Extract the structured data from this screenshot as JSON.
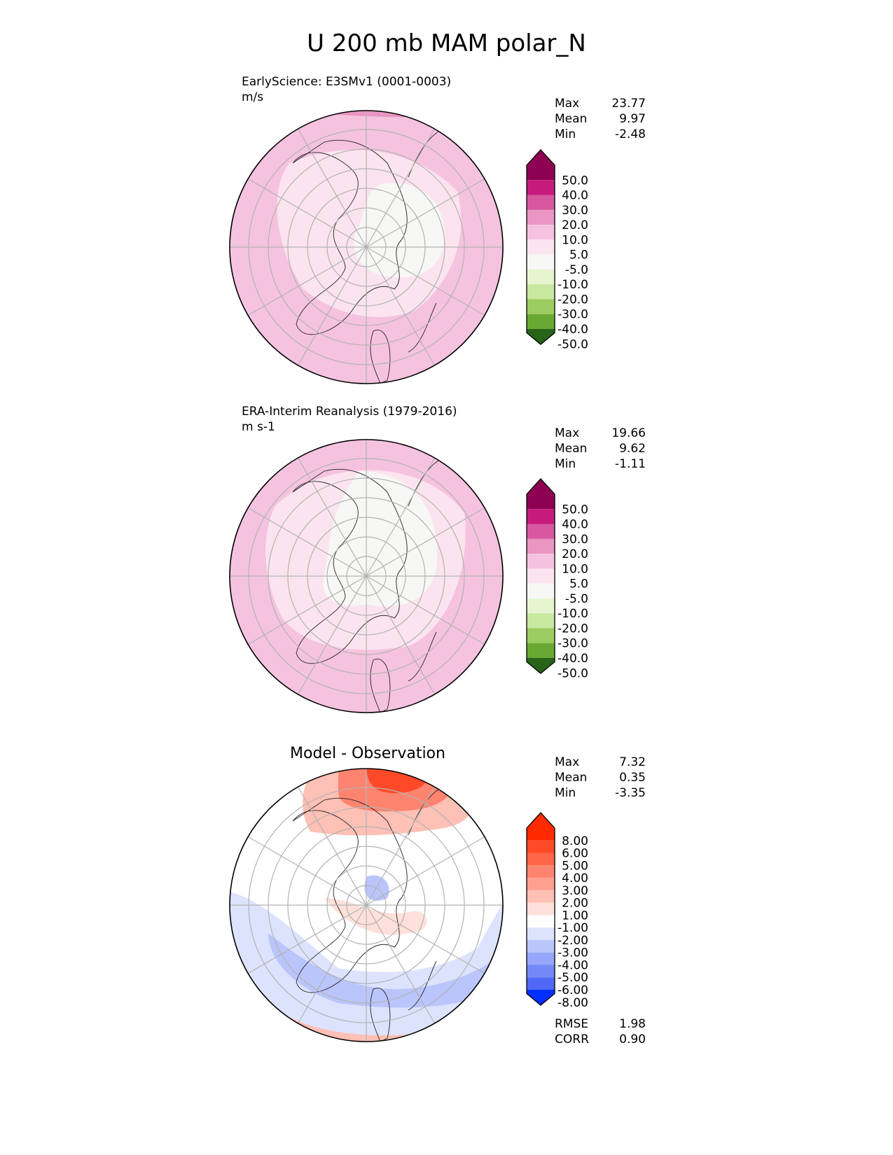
{
  "title": "U 200 mb MAM polar_N",
  "chart_data": {
    "type": "heatmap",
    "title": "U 200 mb MAM polar_N",
    "projection": "north-polar-stereographic",
    "panels": [
      {
        "name": "test",
        "title": "EarlyScience: E3SMv1 (0001-0003)",
        "units": "m/s",
        "stats": [
          {
            "label": "Max",
            "value": "23.77"
          },
          {
            "label": "Mean",
            "value": "9.97"
          },
          {
            "label": "Min",
            "value": "-2.48"
          }
        ]
      },
      {
        "name": "reference",
        "title": "ERA-Interim Reanalysis (1979-2016)",
        "units": "m s-1",
        "stats": [
          {
            "label": "Max",
            "value": "19.66"
          },
          {
            "label": "Mean",
            "value": "9.62"
          },
          {
            "label": "Min",
            "value": "-1.11"
          }
        ]
      },
      {
        "name": "difference",
        "title": "Model - Observation",
        "stats": [
          {
            "label": "Max",
            "value": "7.32"
          },
          {
            "label": "Mean",
            "value": "0.35"
          },
          {
            "label": "Min",
            "value": "-3.35"
          }
        ],
        "metrics": [
          {
            "label": "RMSE",
            "value": "1.98"
          },
          {
            "label": "CORR",
            "value": "0.90"
          }
        ]
      }
    ],
    "colorbar_main": {
      "levels": [
        "50.0",
        "40.0",
        "30.0",
        "20.0",
        "10.0",
        "5.0",
        "-5.0",
        "-10.0",
        "-20.0",
        "-30.0",
        "-40.0",
        "-50.0"
      ],
      "colors": [
        "#8e0152",
        "#c51b7d",
        "#d6589e",
        "#e996c3",
        "#f5c3df",
        "#fbe4ef",
        "#f7f7f5",
        "#e6f5d0",
        "#c9e8a0",
        "#9ccd60",
        "#6aa834",
        "#3f8a22",
        "#276419"
      ]
    },
    "colorbar_diff": {
      "levels": [
        "8.00",
        "6.00",
        "5.00",
        "4.00",
        "3.00",
        "2.00",
        "1.00",
        "-1.00",
        "-2.00",
        "-3.00",
        "-4.00",
        "-5.00",
        "-6.00",
        "-8.00"
      ],
      "colors": [
        "#ff2a00",
        "#ff4a2a",
        "#ff6647",
        "#ff8470",
        "#ffa08f",
        "#ffc0b5",
        "#ffe0da",
        "#ffffff",
        "#dde3fd",
        "#bac5fc",
        "#97a6fa",
        "#7488f8",
        "#4f68f6",
        "#2a49f4",
        "#0030ff"
      ]
    }
  }
}
